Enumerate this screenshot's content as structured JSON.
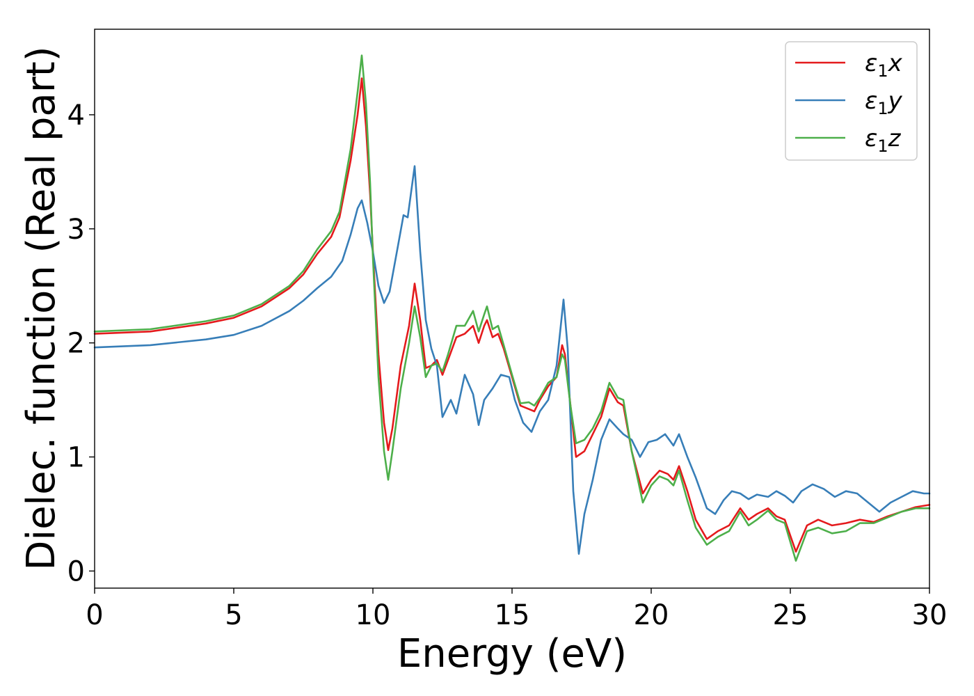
{
  "chart_data": {
    "type": "line",
    "title": "",
    "xlabel": "Energy (eV)",
    "ylabel": "Dielec. function (Real part)",
    "xlim": [
      0,
      30
    ],
    "ylim": [
      -0.15,
      4.75
    ],
    "xticks": [
      0,
      5,
      10,
      15,
      20,
      25,
      30
    ],
    "yticks": [
      0,
      1,
      2,
      3,
      4
    ],
    "grid": false,
    "legend_position": "top-right",
    "series": [
      {
        "name": "ε₁x",
        "symbol": "ε",
        "subscript": "1",
        "suffix": "x",
        "color": "#e41a1c",
        "points": [
          [
            0,
            2.08
          ],
          [
            2,
            2.1
          ],
          [
            4,
            2.17
          ],
          [
            5,
            2.22
          ],
          [
            6,
            2.32
          ],
          [
            7,
            2.48
          ],
          [
            7.5,
            2.6
          ],
          [
            8,
            2.78
          ],
          [
            8.5,
            2.93
          ],
          [
            8.8,
            3.1
          ],
          [
            9.2,
            3.6
          ],
          [
            9.45,
            4.0
          ],
          [
            9.6,
            4.32
          ],
          [
            9.75,
            3.9
          ],
          [
            9.9,
            3.3
          ],
          [
            10.0,
            2.8
          ],
          [
            10.2,
            1.9
          ],
          [
            10.4,
            1.3
          ],
          [
            10.55,
            1.06
          ],
          [
            10.7,
            1.25
          ],
          [
            11.0,
            1.8
          ],
          [
            11.3,
            2.15
          ],
          [
            11.5,
            2.52
          ],
          [
            11.7,
            2.2
          ],
          [
            11.9,
            1.78
          ],
          [
            12.1,
            1.8
          ],
          [
            12.3,
            1.85
          ],
          [
            12.5,
            1.72
          ],
          [
            12.7,
            1.85
          ],
          [
            13.0,
            2.05
          ],
          [
            13.3,
            2.08
          ],
          [
            13.6,
            2.15
          ],
          [
            13.8,
            2.0
          ],
          [
            14.0,
            2.15
          ],
          [
            14.1,
            2.2
          ],
          [
            14.3,
            2.05
          ],
          [
            14.5,
            2.08
          ],
          [
            14.7,
            1.95
          ],
          [
            15.0,
            1.7
          ],
          [
            15.3,
            1.45
          ],
          [
            15.6,
            1.42
          ],
          [
            15.8,
            1.4
          ],
          [
            16.0,
            1.5
          ],
          [
            16.3,
            1.62
          ],
          [
            16.6,
            1.7
          ],
          [
            16.8,
            1.98
          ],
          [
            16.9,
            1.9
          ],
          [
            17.1,
            1.45
          ],
          [
            17.3,
            1.0
          ],
          [
            17.6,
            1.05
          ],
          [
            17.9,
            1.2
          ],
          [
            18.2,
            1.35
          ],
          [
            18.5,
            1.6
          ],
          [
            18.8,
            1.48
          ],
          [
            19.0,
            1.45
          ],
          [
            19.3,
            1.05
          ],
          [
            19.7,
            0.68
          ],
          [
            20.0,
            0.8
          ],
          [
            20.3,
            0.88
          ],
          [
            20.6,
            0.85
          ],
          [
            20.8,
            0.8
          ],
          [
            21.0,
            0.92
          ],
          [
            21.3,
            0.7
          ],
          [
            21.6,
            0.45
          ],
          [
            22.0,
            0.28
          ],
          [
            22.4,
            0.35
          ],
          [
            22.8,
            0.4
          ],
          [
            23.2,
            0.55
          ],
          [
            23.5,
            0.45
          ],
          [
            23.8,
            0.5
          ],
          [
            24.2,
            0.55
          ],
          [
            24.5,
            0.48
          ],
          [
            24.8,
            0.45
          ],
          [
            25.2,
            0.17
          ],
          [
            25.6,
            0.4
          ],
          [
            26.0,
            0.45
          ],
          [
            26.5,
            0.4
          ],
          [
            27.0,
            0.42
          ],
          [
            27.5,
            0.45
          ],
          [
            28.0,
            0.43
          ],
          [
            28.5,
            0.48
          ],
          [
            29.0,
            0.52
          ],
          [
            29.5,
            0.56
          ],
          [
            30,
            0.58
          ]
        ]
      },
      {
        "name": "ε₁y",
        "symbol": "ε",
        "subscript": "1",
        "suffix": "y",
        "color": "#377eb8",
        "points": [
          [
            0,
            1.96
          ],
          [
            2,
            1.98
          ],
          [
            4,
            2.03
          ],
          [
            5,
            2.07
          ],
          [
            6,
            2.15
          ],
          [
            7,
            2.28
          ],
          [
            7.5,
            2.37
          ],
          [
            8,
            2.48
          ],
          [
            8.5,
            2.58
          ],
          [
            8.9,
            2.72
          ],
          [
            9.2,
            2.95
          ],
          [
            9.45,
            3.18
          ],
          [
            9.6,
            3.25
          ],
          [
            9.8,
            3.05
          ],
          [
            10.0,
            2.8
          ],
          [
            10.2,
            2.5
          ],
          [
            10.4,
            2.35
          ],
          [
            10.6,
            2.45
          ],
          [
            10.9,
            2.85
          ],
          [
            11.1,
            3.12
          ],
          [
            11.25,
            3.1
          ],
          [
            11.5,
            3.55
          ],
          [
            11.7,
            2.8
          ],
          [
            11.9,
            2.2
          ],
          [
            12.1,
            1.95
          ],
          [
            12.3,
            1.8
          ],
          [
            12.5,
            1.35
          ],
          [
            12.8,
            1.5
          ],
          [
            13.0,
            1.38
          ],
          [
            13.3,
            1.72
          ],
          [
            13.6,
            1.55
          ],
          [
            13.8,
            1.28
          ],
          [
            14.0,
            1.5
          ],
          [
            14.3,
            1.6
          ],
          [
            14.6,
            1.72
          ],
          [
            14.9,
            1.7
          ],
          [
            15.1,
            1.5
          ],
          [
            15.4,
            1.3
          ],
          [
            15.7,
            1.22
          ],
          [
            16.0,
            1.4
          ],
          [
            16.3,
            1.5
          ],
          [
            16.6,
            1.8
          ],
          [
            16.85,
            2.38
          ],
          [
            17.0,
            1.95
          ],
          [
            17.2,
            0.7
          ],
          [
            17.4,
            0.15
          ],
          [
            17.6,
            0.5
          ],
          [
            17.9,
            0.8
          ],
          [
            18.2,
            1.15
          ],
          [
            18.5,
            1.33
          ],
          [
            18.8,
            1.25
          ],
          [
            19.0,
            1.2
          ],
          [
            19.3,
            1.15
          ],
          [
            19.6,
            1.0
          ],
          [
            19.9,
            1.13
          ],
          [
            20.2,
            1.15
          ],
          [
            20.5,
            1.2
          ],
          [
            20.8,
            1.1
          ],
          [
            21.0,
            1.2
          ],
          [
            21.3,
            1.0
          ],
          [
            21.6,
            0.82
          ],
          [
            22.0,
            0.55
          ],
          [
            22.3,
            0.5
          ],
          [
            22.6,
            0.62
          ],
          [
            22.9,
            0.7
          ],
          [
            23.2,
            0.68
          ],
          [
            23.5,
            0.63
          ],
          [
            23.8,
            0.67
          ],
          [
            24.2,
            0.65
          ],
          [
            24.5,
            0.7
          ],
          [
            24.8,
            0.66
          ],
          [
            25.1,
            0.6
          ],
          [
            25.4,
            0.7
          ],
          [
            25.8,
            0.76
          ],
          [
            26.2,
            0.72
          ],
          [
            26.6,
            0.65
          ],
          [
            27.0,
            0.7
          ],
          [
            27.4,
            0.68
          ],
          [
            27.8,
            0.6
          ],
          [
            28.2,
            0.52
          ],
          [
            28.6,
            0.6
          ],
          [
            29.0,
            0.65
          ],
          [
            29.4,
            0.7
          ],
          [
            29.8,
            0.68
          ],
          [
            30,
            0.68
          ]
        ]
      },
      {
        "name": "ε₁z",
        "symbol": "ε",
        "subscript": "1",
        "suffix": "z",
        "color": "#4daf4a",
        "points": [
          [
            0,
            2.1
          ],
          [
            2,
            2.12
          ],
          [
            4,
            2.19
          ],
          [
            5,
            2.24
          ],
          [
            6,
            2.34
          ],
          [
            7,
            2.5
          ],
          [
            7.5,
            2.63
          ],
          [
            8,
            2.82
          ],
          [
            8.5,
            2.98
          ],
          [
            8.8,
            3.15
          ],
          [
            9.2,
            3.7
          ],
          [
            9.45,
            4.2
          ],
          [
            9.6,
            4.52
          ],
          [
            9.75,
            4.1
          ],
          [
            9.9,
            3.4
          ],
          [
            10.0,
            2.75
          ],
          [
            10.2,
            1.7
          ],
          [
            10.4,
            1.05
          ],
          [
            10.55,
            0.8
          ],
          [
            10.7,
            1.05
          ],
          [
            11.0,
            1.6
          ],
          [
            11.3,
            2.0
          ],
          [
            11.5,
            2.32
          ],
          [
            11.7,
            2.05
          ],
          [
            11.9,
            1.7
          ],
          [
            12.1,
            1.8
          ],
          [
            12.3,
            1.82
          ],
          [
            12.5,
            1.75
          ],
          [
            12.7,
            1.9
          ],
          [
            13.0,
            2.15
          ],
          [
            13.3,
            2.15
          ],
          [
            13.6,
            2.28
          ],
          [
            13.8,
            2.1
          ],
          [
            14.0,
            2.25
          ],
          [
            14.1,
            2.32
          ],
          [
            14.3,
            2.12
          ],
          [
            14.5,
            2.15
          ],
          [
            14.7,
            1.98
          ],
          [
            15.0,
            1.72
          ],
          [
            15.3,
            1.47
          ],
          [
            15.6,
            1.48
          ],
          [
            15.8,
            1.45
          ],
          [
            16.0,
            1.52
          ],
          [
            16.3,
            1.65
          ],
          [
            16.6,
            1.7
          ],
          [
            16.8,
            1.9
          ],
          [
            16.9,
            1.85
          ],
          [
            17.1,
            1.45
          ],
          [
            17.3,
            1.12
          ],
          [
            17.6,
            1.15
          ],
          [
            17.9,
            1.25
          ],
          [
            18.2,
            1.4
          ],
          [
            18.5,
            1.65
          ],
          [
            18.8,
            1.52
          ],
          [
            19.0,
            1.5
          ],
          [
            19.3,
            1.05
          ],
          [
            19.7,
            0.6
          ],
          [
            20.0,
            0.75
          ],
          [
            20.3,
            0.83
          ],
          [
            20.6,
            0.8
          ],
          [
            20.8,
            0.75
          ],
          [
            21.0,
            0.88
          ],
          [
            21.3,
            0.62
          ],
          [
            21.6,
            0.38
          ],
          [
            22.0,
            0.23
          ],
          [
            22.4,
            0.3
          ],
          [
            22.8,
            0.35
          ],
          [
            23.2,
            0.52
          ],
          [
            23.5,
            0.4
          ],
          [
            23.8,
            0.45
          ],
          [
            24.2,
            0.53
          ],
          [
            24.5,
            0.45
          ],
          [
            24.8,
            0.42
          ],
          [
            25.2,
            0.09
          ],
          [
            25.6,
            0.35
          ],
          [
            26.0,
            0.38
          ],
          [
            26.5,
            0.33
          ],
          [
            27.0,
            0.35
          ],
          [
            27.5,
            0.42
          ],
          [
            28.0,
            0.42
          ],
          [
            28.5,
            0.47
          ],
          [
            29.0,
            0.52
          ],
          [
            29.5,
            0.55
          ],
          [
            30,
            0.55
          ]
        ]
      }
    ]
  }
}
